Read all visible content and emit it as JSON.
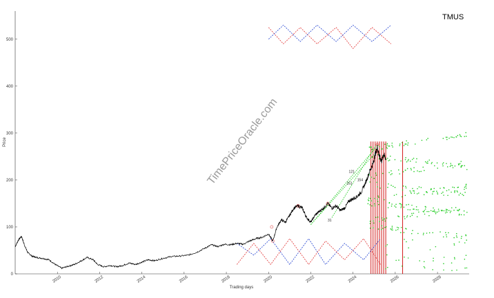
{
  "chart_data": {
    "type": "line",
    "title": "TMUS",
    "xlabel": "Trading days",
    "ylabel": "Price",
    "watermark": "TimePriceOracle.com",
    "ylim": [
      0,
      560
    ],
    "xlim": [
      2008.0,
      2029.5
    ],
    "yticks": [
      "0",
      "100",
      "200",
      "300",
      "400",
      "500"
    ],
    "xticks": [
      "2010",
      "2012",
      "2014",
      "2016",
      "2018",
      "2020",
      "2022",
      "2024",
      "2026",
      "2028"
    ],
    "annotations": [
      "121",
      "154",
      "151",
      "31"
    ],
    "series": [
      {
        "values": [
          [
            2008.0,
            58
          ],
          [
            2008.15,
            72
          ],
          [
            2008.3,
            80
          ],
          [
            2008.45,
            60
          ],
          [
            2008.6,
            45
          ],
          [
            2008.8,
            38
          ],
          [
            2009.0,
            35
          ],
          [
            2009.3,
            33
          ],
          [
            2009.6,
            30
          ],
          [
            2009.9,
            20
          ],
          [
            2010.2,
            12
          ],
          [
            2010.5,
            16
          ],
          [
            2010.8,
            20
          ],
          [
            2011.1,
            27
          ],
          [
            2011.4,
            35
          ],
          [
            2011.7,
            30
          ],
          [
            2011.9,
            20
          ],
          [
            2012.2,
            15
          ],
          [
            2012.5,
            18
          ],
          [
            2012.8,
            15
          ],
          [
            2013.1,
            18
          ],
          [
            2013.4,
            23
          ],
          [
            2013.7,
            20
          ],
          [
            2014.0,
            25
          ],
          [
            2014.3,
            30
          ],
          [
            2014.6,
            28
          ],
          [
            2015.0,
            33
          ],
          [
            2015.4,
            37
          ],
          [
            2015.8,
            38
          ],
          [
            2016.2,
            40
          ],
          [
            2016.6,
            46
          ],
          [
            2017.0,
            55
          ],
          [
            2017.3,
            62
          ],
          [
            2017.6,
            58
          ],
          [
            2017.9,
            63
          ],
          [
            2018.2,
            62
          ],
          [
            2018.5,
            65
          ],
          [
            2018.8,
            63
          ],
          [
            2019.1,
            70
          ],
          [
            2019.4,
            75
          ],
          [
            2019.7,
            78
          ],
          [
            2020.0,
            85
          ],
          [
            2020.2,
            70
          ],
          [
            2020.4,
            100
          ],
          [
            2020.6,
            115
          ],
          [
            2020.8,
            110
          ],
          [
            2021.0,
            125
          ],
          [
            2021.2,
            140
          ],
          [
            2021.4,
            145
          ],
          [
            2021.6,
            140
          ],
          [
            2021.8,
            120
          ],
          [
            2022.0,
            110
          ],
          [
            2022.2,
            125
          ],
          [
            2022.4,
            133
          ],
          [
            2022.6,
            140
          ],
          [
            2022.8,
            150
          ],
          [
            2023.0,
            140
          ],
          [
            2023.2,
            145
          ],
          [
            2023.4,
            135
          ],
          [
            2023.6,
            140
          ],
          [
            2023.8,
            155
          ],
          [
            2024.0,
            160
          ],
          [
            2024.2,
            165
          ],
          [
            2024.4,
            175
          ],
          [
            2024.6,
            195
          ],
          [
            2024.8,
            220
          ],
          [
            2024.95,
            235
          ],
          [
            2025.05,
            255
          ],
          [
            2025.15,
            270
          ],
          [
            2025.25,
            250
          ],
          [
            2025.35,
            240
          ],
          [
            2025.45,
            255
          ],
          [
            2025.55,
            245
          ]
        ]
      }
    ],
    "colors": {
      "price": "#000000",
      "marker": "#e05050",
      "vline": "#cc0000",
      "dash_red": "#e03030",
      "dash_blue": "#2040d0",
      "projection": "#22cc22",
      "axis": "#333333"
    }
  }
}
